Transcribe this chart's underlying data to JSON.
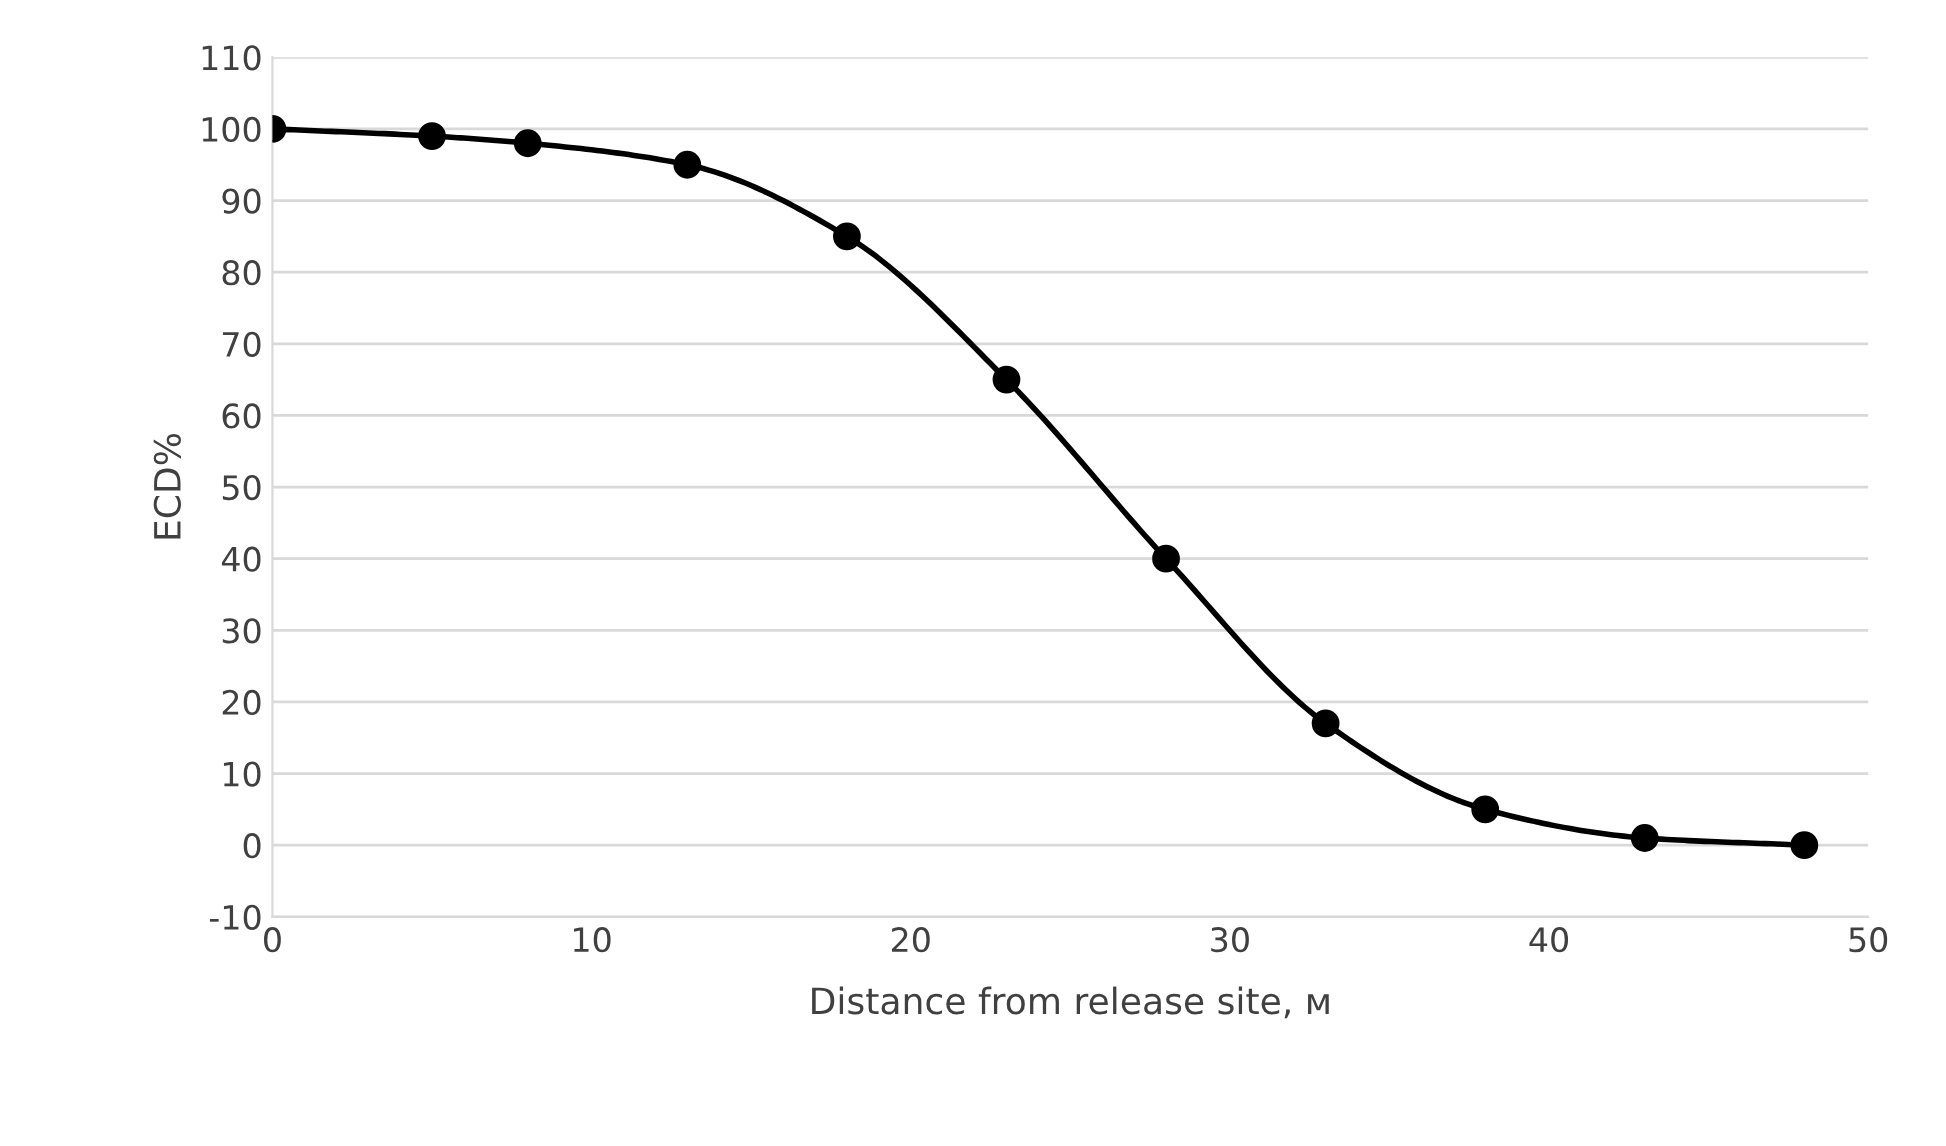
{
  "chart_data": {
    "type": "line",
    "xlabel": "Distance from release site, м",
    "ylabel": "ECD%",
    "x": [
      0,
      5,
      8,
      13,
      18,
      23,
      28,
      33,
      38,
      43,
      48
    ],
    "series": [
      {
        "color": "#000000",
        "values": [
          100,
          99,
          98,
          95,
          85,
          65,
          40,
          17,
          5,
          1,
          0
        ]
      }
    ],
    "xlim": [
      0,
      50
    ],
    "xticks": [
      0,
      10,
      20,
      30,
      40,
      50
    ],
    "ylim": [
      -10,
      110
    ],
    "yticks": [
      -10,
      0,
      10,
      20,
      30,
      40,
      50,
      60,
      70,
      80,
      90,
      100,
      110
    ],
    "grid": "y",
    "marker": "circle",
    "line_style": "solid",
    "legend": false
  }
}
